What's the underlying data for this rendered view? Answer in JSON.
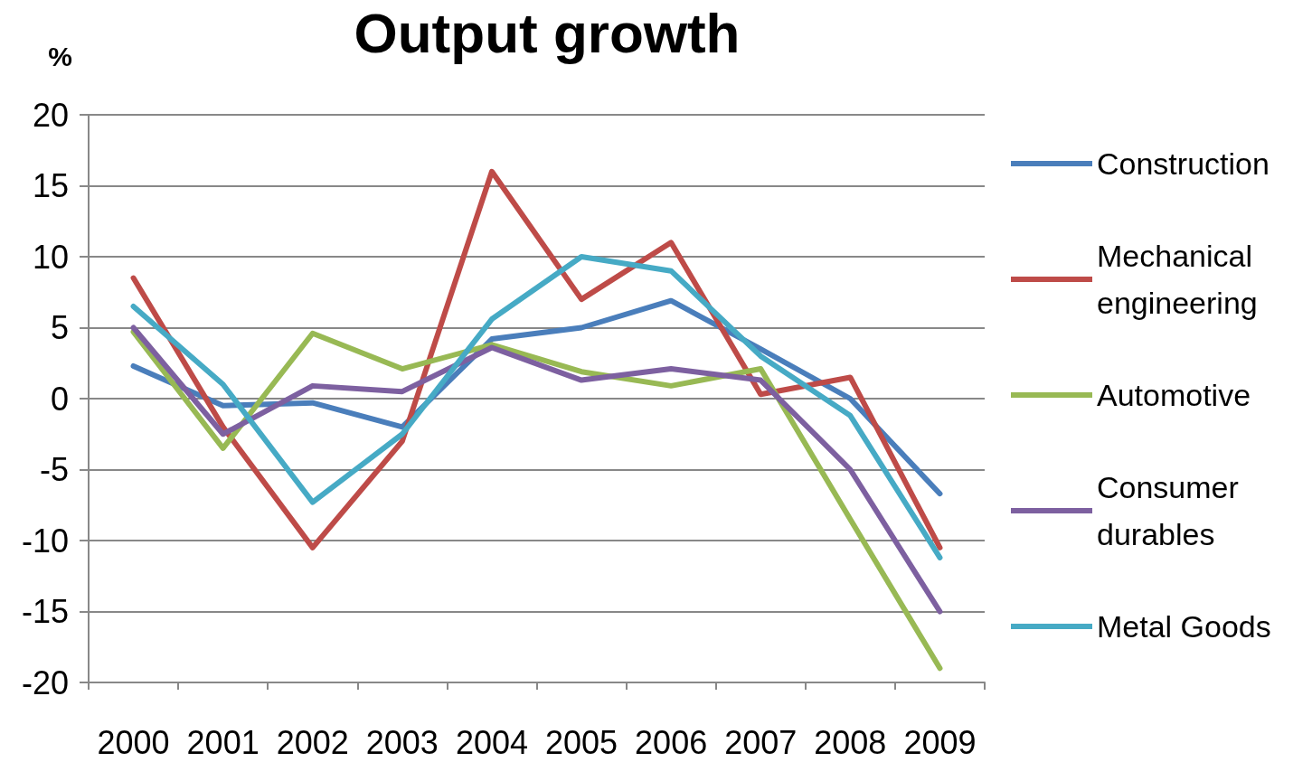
{
  "chart_data": {
    "type": "line",
    "title": "Output growth",
    "ylabel": "%",
    "categories": [
      "2000",
      "2001",
      "2002",
      "2003",
      "2004",
      "2005",
      "2006",
      "2007",
      "2008",
      "2009"
    ],
    "series": [
      {
        "name": "Construction",
        "color": "#4a7ebb",
        "values": [
          2.3,
          -0.5,
          -0.3,
          -2,
          4.2,
          5,
          6.9,
          3.5,
          0,
          -6.7
        ]
      },
      {
        "name": "Mechanical engineering",
        "color": "#be4b48",
        "values": [
          8.5,
          -2,
          -10.5,
          -3,
          16,
          7,
          11,
          0.3,
          1.5,
          -10.5
        ]
      },
      {
        "name": "Automotive",
        "color": "#98b954",
        "values": [
          4.7,
          -3.5,
          4.6,
          2.1,
          3.8,
          1.9,
          0.9,
          2.1,
          -8.5,
          -19
        ]
      },
      {
        "name": "Consumer durables",
        "color": "#7d60a0",
        "values": [
          5,
          -2.5,
          0.9,
          0.5,
          3.6,
          1.3,
          2.1,
          1.3,
          -5,
          -15
        ]
      },
      {
        "name": "Metal Goods",
        "color": "#46aac5",
        "values": [
          6.5,
          1,
          -7.3,
          -2.5,
          5.6,
          10,
          9,
          3,
          -1.2,
          -11.2
        ]
      }
    ],
    "ylim": [
      -20,
      20
    ],
    "yticks": [
      -20,
      -15,
      -10,
      -5,
      0,
      5,
      10,
      15,
      20
    ],
    "grid": "y",
    "legend": "right",
    "marker": "none",
    "line_style": "solid"
  }
}
